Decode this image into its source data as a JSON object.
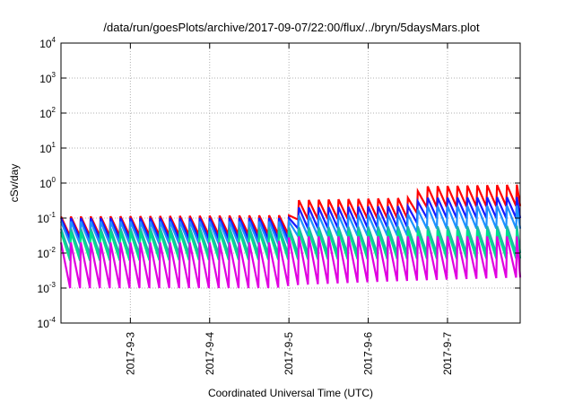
{
  "chart_data": {
    "type": "line",
    "title": "/data/run/goesPlots/archive/2017-09-07/22:00/flux/../bryn/5daysMars.plot",
    "xlabel": "Coordinated Universal Time (UTC)",
    "ylabel": "cSv/day",
    "yscale": "log",
    "ylim": [
      0.0001,
      10000
    ],
    "y_ticks": [
      {
        "base": "10",
        "exp": "-4",
        "value": 0.0001
      },
      {
        "base": "10",
        "exp": "-3",
        "value": 0.001
      },
      {
        "base": "10",
        "exp": "-2",
        "value": 0.01
      },
      {
        "base": "10",
        "exp": "-1",
        "value": 0.1
      },
      {
        "base": "10",
        "exp": "0",
        "value": 1
      },
      {
        "base": "10",
        "exp": "1",
        "value": 10
      },
      {
        "base": "10",
        "exp": "2",
        "value": 100
      },
      {
        "base": "10",
        "exp": "3",
        "value": 1000
      },
      {
        "base": "10",
        "exp": "4",
        "value": 10000
      }
    ],
    "x_range": [
      "2017-09-02 03:00",
      "2017-09-07 22:00"
    ],
    "x_ticks": [
      "2017-9-3",
      "2017-9-4",
      "2017-9-5",
      "2017-9-6",
      "2017-9-7"
    ],
    "grid": true,
    "legend": "none",
    "sawtooth_period_hours": 3,
    "series": [
      {
        "color": "#ff0000",
        "envelope": [
          {
            "date": "2017-09-02 03:00",
            "peak": 0.11,
            "trough": 0.03
          },
          {
            "date": "2017-09-05 00:00",
            "peak": 0.12,
            "trough": 0.035
          },
          {
            "date": "2017-09-05 01:00",
            "peak": 0.32,
            "trough": 0.09
          },
          {
            "date": "2017-09-06 14:00",
            "peak": 0.38,
            "trough": 0.1
          },
          {
            "date": "2017-09-06 16:00",
            "peak": 0.8,
            "trough": 0.2
          },
          {
            "date": "2017-09-07 22:00",
            "peak": 0.9,
            "trough": 0.22
          }
        ]
      },
      {
        "color": "#1a1aff",
        "envelope": [
          {
            "date": "2017-09-02 03:00",
            "peak": 0.1,
            "trough": 0.025
          },
          {
            "date": "2017-09-05 00:00",
            "peak": 0.1,
            "trough": 0.025
          },
          {
            "date": "2017-09-05 01:00",
            "peak": 0.2,
            "trough": 0.05
          },
          {
            "date": "2017-09-06 14:00",
            "peak": 0.22,
            "trough": 0.055
          },
          {
            "date": "2017-09-06 16:00",
            "peak": 0.38,
            "trough": 0.1
          },
          {
            "date": "2017-09-07 22:00",
            "peak": 0.4,
            "trough": 0.1
          }
        ]
      },
      {
        "color": "#1e90ff",
        "envelope": [
          {
            "date": "2017-09-02 03:00",
            "peak": 0.08,
            "trough": 0.018
          },
          {
            "date": "2017-09-05 00:00",
            "peak": 0.08,
            "trough": 0.018
          },
          {
            "date": "2017-09-05 01:00",
            "peak": 0.12,
            "trough": 0.03
          },
          {
            "date": "2017-09-06 14:00",
            "peak": 0.13,
            "trough": 0.032
          },
          {
            "date": "2017-09-06 16:00",
            "peak": 0.22,
            "trough": 0.05
          },
          {
            "date": "2017-09-07 22:00",
            "peak": 0.23,
            "trough": 0.05
          }
        ]
      },
      {
        "color": "#20b2aa",
        "envelope": [
          {
            "date": "2017-09-02 03:00",
            "peak": 0.05,
            "trough": 0.009
          },
          {
            "date": "2017-09-07 22:00",
            "peak": 0.06,
            "trough": 0.01
          }
        ]
      },
      {
        "color": "#00e08c",
        "envelope": [
          {
            "date": "2017-09-02 03:00",
            "peak": 0.04,
            "trough": 0.006
          },
          {
            "date": "2017-09-07 22:00",
            "peak": 0.045,
            "trough": 0.007
          }
        ]
      },
      {
        "color": "#e000e0",
        "envelope": [
          {
            "date": "2017-09-02 03:00",
            "peak": 0.02,
            "trough": 0.001
          },
          {
            "date": "2017-09-04 20:00",
            "peak": 0.02,
            "trough": 0.001
          },
          {
            "date": "2017-09-05 01:00",
            "peak": 0.03,
            "trough": 0.0012
          },
          {
            "date": "2017-09-07 22:00",
            "peak": 0.03,
            "trough": 0.002
          }
        ]
      }
    ]
  }
}
